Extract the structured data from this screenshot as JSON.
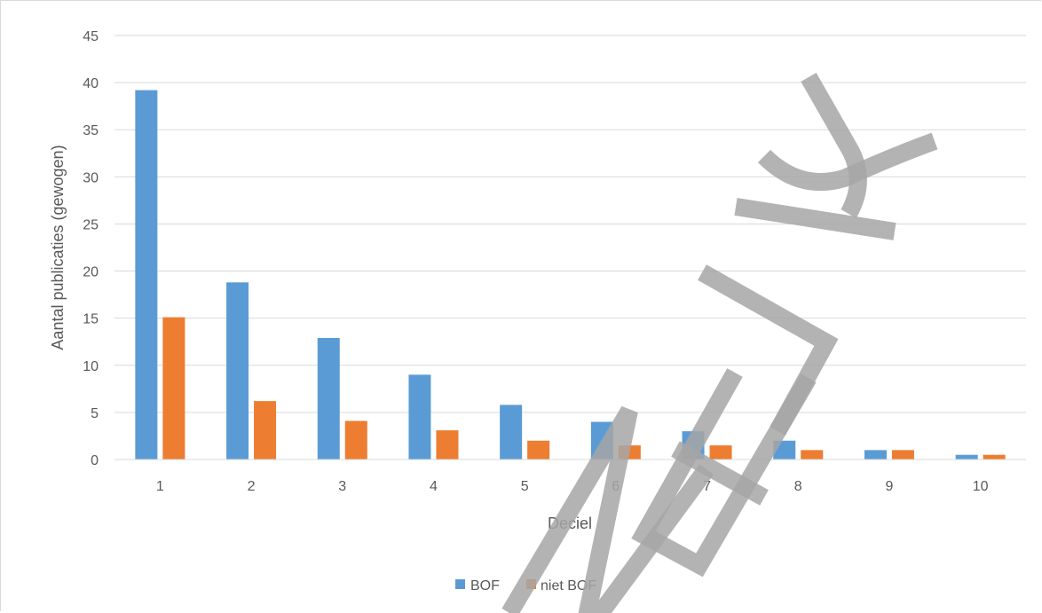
{
  "chart_data": {
    "type": "bar",
    "categories": [
      "1",
      "2",
      "3",
      "4",
      "5",
      "6",
      "7",
      "8",
      "9",
      "10"
    ],
    "series": [
      {
        "name": "BOF",
        "color": "#5b9bd5",
        "values": [
          39.2,
          18.8,
          12.9,
          9.0,
          5.8,
          4.0,
          3.0,
          2.0,
          1.0,
          0.5
        ]
      },
      {
        "name": "niet BOF",
        "color": "#ed7d31",
        "values": [
          15.1,
          6.2,
          4.1,
          3.1,
          2.0,
          1.5,
          1.5,
          1.0,
          1.0,
          0.5
        ]
      }
    ],
    "title": "",
    "xlabel": "Deciel",
    "ylabel": "Aantal publicaties (gewogen)",
    "ylim": [
      0,
      45
    ],
    "yticks": [
      "0",
      "5",
      "10",
      "15",
      "20",
      "25",
      "30",
      "35",
      "40",
      "45"
    ],
    "grid": true,
    "legend_position": "bottom",
    "watermark_text": "NEL",
    "watermark_text_2": "IJK"
  }
}
